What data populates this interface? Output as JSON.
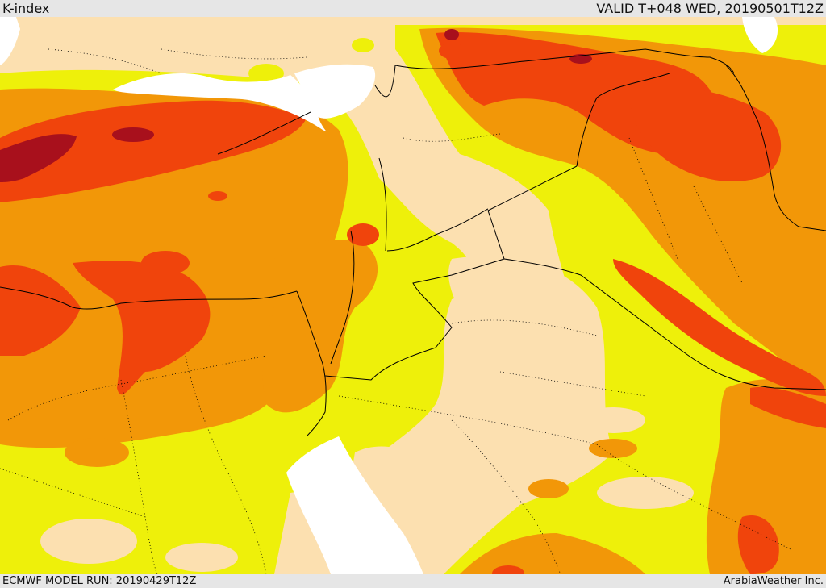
{
  "header": {
    "title": "K-index",
    "valid_time": "VALID T+048 WED, 20190501T12Z"
  },
  "footer": {
    "model_run": "ECMWF MODEL RUN: 20190429T12Z",
    "credit": "ArabiaWeather Inc."
  },
  "palette": {
    "background_low": "#fce0b0",
    "level_1": "#eef00a",
    "level_2": "#f29708",
    "level_3": "#f0440c",
    "level_4": "#a8101c",
    "water": "#ffffff",
    "border_line": "#000000"
  }
}
